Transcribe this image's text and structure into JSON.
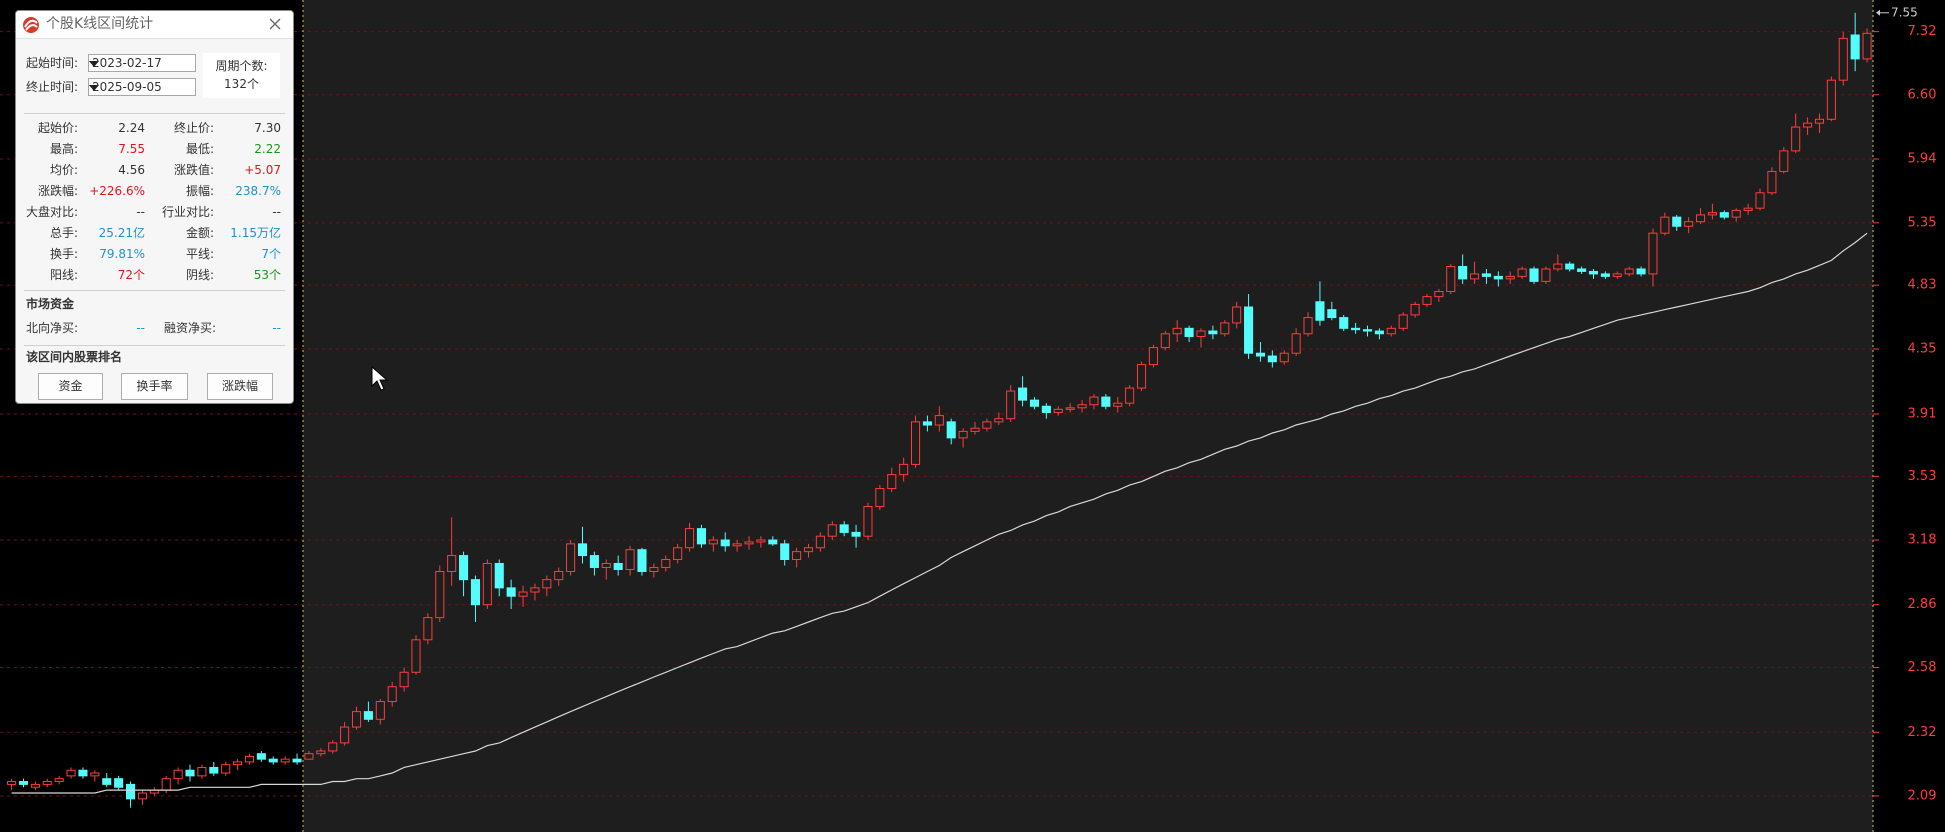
{
  "window": {
    "title": "个股K线区间统计",
    "start_label": "起始时间:",
    "start_date": "2023-02-17",
    "end_label": "终止时间:",
    "end_date": "2025-09-05",
    "period_label": "周期个数:",
    "period_count": "132个",
    "stats": [
      [
        {
          "label": "起始价:",
          "value": "2.24",
          "color": "#333333"
        },
        {
          "label": "终止价:",
          "value": "7.30",
          "color": "#333333"
        }
      ],
      [
        {
          "label": "最高:",
          "value": "7.55",
          "color": "#e4141e"
        },
        {
          "label": "最低:",
          "value": "2.22",
          "color": "#169a16"
        }
      ],
      [
        {
          "label": "均价:",
          "value": "4.56",
          "color": "#333333"
        },
        {
          "label": "涨跌值:",
          "value": "+5.07",
          "color": "#e4141e"
        }
      ],
      [
        {
          "label": "涨跌幅:",
          "value": "+226.6%",
          "color": "#e4141e"
        },
        {
          "label": "振幅:",
          "value": "238.7%",
          "color": "#1f93c8"
        }
      ],
      [
        {
          "label": "大盘对比:",
          "value": "--",
          "color": "#333333"
        },
        {
          "label": "行业对比:",
          "value": "--",
          "color": "#333333"
        }
      ],
      [
        {
          "label": "总手:",
          "value": "25.21亿",
          "color": "#1f93c8"
        },
        {
          "label": "金额:",
          "value": "1.15万亿",
          "color": "#1f93c8"
        }
      ],
      [
        {
          "label": "换手:",
          "value": "79.81%",
          "color": "#1f93c8"
        },
        {
          "label": "平线:",
          "value": "7个",
          "color": "#1f93c8"
        }
      ],
      [
        {
          "label": "阳线:",
          "value": "72个",
          "color": "#e4141e"
        },
        {
          "label": "阴线:",
          "value": "53个",
          "color": "#169a16"
        }
      ]
    ],
    "market_funds": {
      "title": "市场资金",
      "rows": [
        [
          {
            "label": "北向净买:",
            "value": "--",
            "color": "#1f93c8"
          },
          {
            "label": "融资净买:",
            "value": "--",
            "color": "#1f93c8"
          }
        ]
      ]
    },
    "ranking": {
      "title": "该区间内股票排名",
      "buttons": [
        "资金",
        "换手率",
        "涨跌幅"
      ]
    }
  },
  "chart_data": {
    "type": "candlestick",
    "log_scale": true,
    "grid": true,
    "ylim": [
      1.97,
      7.71
    ],
    "yticks": [
      2.09,
      2.32,
      2.58,
      2.86,
      3.18,
      3.53,
      3.91,
      4.35,
      4.83,
      5.35,
      5.94,
      {
        "value": 6.6,
        "label": "6.60"
      },
      7.32
    ],
    "up_color": "#ff3c3c",
    "down_color": "#54fcfc",
    "max_marker": 7.55,
    "pre_candles": [
      [
        2.13,
        2.15,
        2.11,
        2.14
      ],
      [
        2.14,
        2.15,
        2.12,
        2.13
      ],
      [
        2.12,
        2.14,
        2.11,
        2.13
      ],
      [
        2.13,
        2.15,
        2.12,
        2.14
      ],
      [
        2.14,
        2.16,
        2.13,
        2.15
      ],
      [
        2.16,
        2.19,
        2.15,
        2.18
      ],
      [
        2.18,
        2.19,
        2.15,
        2.16
      ],
      [
        2.16,
        2.18,
        2.14,
        2.17
      ],
      [
        2.15,
        2.17,
        2.12,
        2.13
      ],
      [
        2.15,
        2.16,
        2.11,
        2.12
      ],
      [
        2.13,
        2.14,
        2.05,
        2.08
      ],
      [
        2.08,
        2.11,
        2.06,
        2.1
      ],
      [
        2.1,
        2.12,
        2.09,
        2.11
      ],
      [
        2.11,
        2.16,
        2.1,
        2.15
      ],
      [
        2.15,
        2.19,
        2.13,
        2.18
      ],
      [
        2.18,
        2.2,
        2.14,
        2.16
      ],
      [
        2.16,
        2.2,
        2.15,
        2.19
      ],
      [
        2.19,
        2.21,
        2.16,
        2.17
      ],
      [
        2.17,
        2.21,
        2.16,
        2.2
      ],
      [
        2.2,
        2.22,
        2.18,
        2.21
      ],
      [
        2.21,
        2.24,
        2.2,
        2.23
      ],
      [
        2.24,
        2.25,
        2.21,
        2.22
      ],
      [
        2.22,
        2.23,
        2.2,
        2.21
      ],
      [
        2.21,
        2.23,
        2.2,
        2.22
      ],
      [
        2.22,
        2.24,
        2.2,
        2.21
      ]
    ],
    "candles": [
      [
        2.22,
        2.25,
        2.22,
        2.24
      ],
      [
        2.24,
        2.26,
        2.23,
        2.25
      ],
      [
        2.25,
        2.29,
        2.24,
        2.28
      ],
      [
        2.28,
        2.36,
        2.27,
        2.34
      ],
      [
        2.34,
        2.42,
        2.33,
        2.4
      ],
      [
        2.4,
        2.44,
        2.36,
        2.37
      ],
      [
        2.37,
        2.45,
        2.35,
        2.44
      ],
      [
        2.44,
        2.52,
        2.42,
        2.5
      ],
      [
        2.5,
        2.58,
        2.48,
        2.56
      ],
      [
        2.56,
        2.72,
        2.55,
        2.7
      ],
      [
        2.7,
        2.82,
        2.68,
        2.8
      ],
      [
        2.8,
        3.05,
        2.78,
        3.02
      ],
      [
        3.02,
        3.3,
        2.95,
        3.1
      ],
      [
        3.1,
        3.12,
        2.9,
        2.98
      ],
      [
        2.98,
        3.0,
        2.78,
        2.86
      ],
      [
        2.86,
        3.08,
        2.84,
        3.06
      ],
      [
        3.06,
        3.08,
        2.9,
        2.94
      ],
      [
        2.94,
        2.98,
        2.84,
        2.9
      ],
      [
        2.9,
        2.95,
        2.85,
        2.92
      ],
      [
        2.92,
        2.96,
        2.88,
        2.94
      ],
      [
        2.94,
        3.0,
        2.9,
        2.98
      ],
      [
        2.98,
        3.04,
        2.95,
        3.02
      ],
      [
        3.02,
        3.18,
        3.0,
        3.16
      ],
      [
        3.16,
        3.25,
        3.06,
        3.1
      ],
      [
        3.1,
        3.12,
        3.0,
        3.04
      ],
      [
        3.04,
        3.08,
        2.98,
        3.06
      ],
      [
        3.06,
        3.1,
        3.0,
        3.03
      ],
      [
        3.03,
        3.15,
        3.0,
        3.13
      ],
      [
        3.13,
        3.14,
        3.0,
        3.02
      ],
      [
        3.02,
        3.06,
        2.99,
        3.04
      ],
      [
        3.04,
        3.1,
        3.02,
        3.08
      ],
      [
        3.08,
        3.16,
        3.06,
        3.14
      ],
      [
        3.14,
        3.27,
        3.12,
        3.24
      ],
      [
        3.24,
        3.26,
        3.14,
        3.16
      ],
      [
        3.16,
        3.2,
        3.12,
        3.18
      ],
      [
        3.18,
        3.22,
        3.12,
        3.15
      ],
      [
        3.15,
        3.18,
        3.12,
        3.16
      ],
      [
        3.16,
        3.2,
        3.13,
        3.17
      ],
      [
        3.17,
        3.2,
        3.14,
        3.18
      ],
      [
        3.18,
        3.2,
        3.15,
        3.16
      ],
      [
        3.16,
        3.18,
        3.05,
        3.08
      ],
      [
        3.08,
        3.14,
        3.04,
        3.12
      ],
      [
        3.12,
        3.16,
        3.09,
        3.14
      ],
      [
        3.14,
        3.22,
        3.12,
        3.2
      ],
      [
        3.2,
        3.28,
        3.18,
        3.26
      ],
      [
        3.26,
        3.28,
        3.2,
        3.22
      ],
      [
        3.22,
        3.26,
        3.14,
        3.2
      ],
      [
        3.2,
        3.38,
        3.18,
        3.36
      ],
      [
        3.36,
        3.48,
        3.34,
        3.46
      ],
      [
        3.46,
        3.58,
        3.44,
        3.54
      ],
      [
        3.54,
        3.64,
        3.5,
        3.6
      ],
      [
        3.6,
        3.9,
        3.58,
        3.86
      ],
      [
        3.86,
        3.9,
        3.8,
        3.84
      ],
      [
        3.84,
        3.96,
        3.8,
        3.9
      ],
      [
        3.86,
        3.88,
        3.72,
        3.76
      ],
      [
        3.76,
        3.82,
        3.7,
        3.8
      ],
      [
        3.8,
        3.86,
        3.78,
        3.82
      ],
      [
        3.82,
        3.88,
        3.8,
        3.86
      ],
      [
        3.86,
        3.92,
        3.84,
        3.88
      ],
      [
        3.88,
        4.1,
        3.86,
        4.06
      ],
      [
        4.08,
        4.16,
        3.96,
        4.0
      ],
      [
        4.0,
        4.02,
        3.94,
        3.96
      ],
      [
        3.96,
        3.98,
        3.88,
        3.92
      ],
      [
        3.92,
        3.96,
        3.9,
        3.94
      ],
      [
        3.94,
        3.98,
        3.92,
        3.95
      ],
      [
        3.95,
        4.0,
        3.92,
        3.97
      ],
      [
        3.97,
        4.04,
        3.94,
        4.02
      ],
      [
        4.02,
        4.04,
        3.94,
        3.96
      ],
      [
        3.96,
        4.02,
        3.92,
        3.98
      ],
      [
        3.98,
        4.1,
        3.96,
        4.08
      ],
      [
        4.08,
        4.26,
        4.06,
        4.24
      ],
      [
        4.24,
        4.38,
        4.22,
        4.36
      ],
      [
        4.36,
        4.48,
        4.34,
        4.46
      ],
      [
        4.46,
        4.56,
        4.4,
        4.5
      ],
      [
        4.5,
        4.52,
        4.4,
        4.44
      ],
      [
        4.44,
        4.5,
        4.36,
        4.48
      ],
      [
        4.48,
        4.52,
        4.42,
        4.46
      ],
      [
        4.46,
        4.56,
        4.44,
        4.54
      ],
      [
        4.54,
        4.7,
        4.5,
        4.66
      ],
      [
        4.66,
        4.76,
        4.28,
        4.32
      ],
      [
        4.32,
        4.4,
        4.26,
        4.3
      ],
      [
        4.3,
        4.34,
        4.22,
        4.26
      ],
      [
        4.26,
        4.34,
        4.24,
        4.32
      ],
      [
        4.32,
        4.5,
        4.3,
        4.46
      ],
      [
        4.46,
        4.62,
        4.44,
        4.58
      ],
      [
        4.7,
        4.86,
        4.52,
        4.56
      ],
      [
        4.64,
        4.7,
        4.56,
        4.58
      ],
      [
        4.58,
        4.6,
        4.48,
        4.5
      ],
      [
        4.5,
        4.54,
        4.46,
        4.49
      ],
      [
        4.49,
        4.52,
        4.44,
        4.48
      ],
      [
        4.48,
        4.5,
        4.42,
        4.46
      ],
      [
        4.46,
        4.52,
        4.44,
        4.5
      ],
      [
        4.5,
        4.62,
        4.48,
        4.6
      ],
      [
        4.6,
        4.7,
        4.58,
        4.68
      ],
      [
        4.68,
        4.76,
        4.66,
        4.74
      ],
      [
        4.74,
        4.8,
        4.7,
        4.78
      ],
      [
        4.78,
        5.0,
        4.76,
        4.98
      ],
      [
        4.98,
        5.08,
        4.84,
        4.88
      ],
      [
        4.88,
        5.02,
        4.84,
        4.92
      ],
      [
        4.92,
        4.96,
        4.84,
        4.9
      ],
      [
        4.9,
        4.94,
        4.82,
        4.88
      ],
      [
        4.88,
        4.94,
        4.84,
        4.9
      ],
      [
        4.9,
        4.98,
        4.88,
        4.96
      ],
      [
        4.96,
        4.98,
        4.84,
        4.86
      ],
      [
        4.86,
        4.98,
        4.84,
        4.96
      ],
      [
        4.96,
        5.08,
        4.94,
        5.0
      ],
      [
        5.0,
        5.02,
        4.94,
        4.96
      ],
      [
        4.96,
        4.98,
        4.92,
        4.94
      ],
      [
        4.94,
        4.96,
        4.88,
        4.92
      ],
      [
        4.92,
        4.94,
        4.88,
        4.9
      ],
      [
        4.9,
        4.94,
        4.88,
        4.92
      ],
      [
        4.92,
        4.98,
        4.9,
        4.96
      ],
      [
        4.96,
        4.98,
        4.9,
        4.92
      ],
      [
        4.92,
        5.3,
        4.82,
        5.26
      ],
      [
        5.26,
        5.44,
        5.24,
        5.4
      ],
      [
        5.4,
        5.42,
        5.28,
        5.32
      ],
      [
        5.32,
        5.4,
        5.26,
        5.36
      ],
      [
        5.36,
        5.48,
        5.34,
        5.42
      ],
      [
        5.42,
        5.52,
        5.38,
        5.44
      ],
      [
        5.44,
        5.46,
        5.38,
        5.4
      ],
      [
        5.4,
        5.48,
        5.36,
        5.46
      ],
      [
        5.46,
        5.52,
        5.42,
        5.48
      ],
      [
        5.48,
        5.66,
        5.46,
        5.62
      ],
      [
        5.62,
        5.86,
        5.6,
        5.82
      ],
      [
        5.82,
        6.06,
        5.8,
        6.02
      ],
      [
        6.02,
        6.4,
        6.0,
        6.26
      ],
      [
        6.26,
        6.36,
        6.18,
        6.3
      ],
      [
        6.3,
        6.4,
        6.2,
        6.34
      ],
      [
        6.34,
        6.8,
        6.32,
        6.76
      ],
      [
        6.76,
        7.32,
        6.7,
        7.24
      ],
      [
        7.28,
        7.55,
        6.86,
        7.0
      ],
      [
        7.0,
        7.36,
        6.96,
        7.3
      ]
    ],
    "ma": {
      "color": "#d8d8d8",
      "values": [
        2.1,
        2.1,
        2.1,
        2.1,
        2.1,
        2.1,
        2.1,
        2.1,
        2.11,
        2.11,
        2.11,
        2.11,
        2.11,
        2.11,
        2.11,
        2.12,
        2.12,
        2.12,
        2.12,
        2.12,
        2.12,
        2.13,
        2.13,
        2.13,
        2.13,
        2.13,
        2.13,
        2.14,
        2.14,
        2.15,
        2.15,
        2.16,
        2.17,
        2.19,
        2.2,
        2.21,
        2.22,
        2.23,
        2.24,
        2.25,
        2.27,
        2.28,
        2.3,
        2.32,
        2.34,
        2.36,
        2.38,
        2.4,
        2.42,
        2.44,
        2.46,
        2.48,
        2.5,
        2.52,
        2.54,
        2.56,
        2.58,
        2.6,
        2.62,
        2.64,
        2.66,
        2.67,
        2.69,
        2.71,
        2.73,
        2.74,
        2.76,
        2.78,
        2.8,
        2.82,
        2.83,
        2.85,
        2.87,
        2.9,
        2.93,
        2.96,
        2.99,
        3.02,
        3.05,
        3.09,
        3.12,
        3.15,
        3.18,
        3.21,
        3.23,
        3.26,
        3.28,
        3.31,
        3.33,
        3.36,
        3.38,
        3.4,
        3.43,
        3.45,
        3.48,
        3.5,
        3.53,
        3.56,
        3.58,
        3.61,
        3.63,
        3.66,
        3.69,
        3.71,
        3.74,
        3.76,
        3.79,
        3.81,
        3.84,
        3.86,
        3.88,
        3.91,
        3.93,
        3.96,
        3.98,
        4.01,
        4.03,
        4.06,
        4.08,
        4.11,
        4.14,
        4.16,
        4.19,
        4.21,
        4.24,
        4.27,
        4.3,
        4.33,
        4.36,
        4.39,
        4.42,
        4.44,
        4.47,
        4.5,
        4.53,
        4.56,
        4.58,
        4.6,
        4.62,
        4.64,
        4.66,
        4.68,
        4.7,
        4.72,
        4.74,
        4.76,
        4.78,
        4.81,
        4.85,
        4.88,
        4.92,
        4.95,
        4.99,
        5.03,
        5.11,
        5.18,
        5.26
      ]
    }
  }
}
